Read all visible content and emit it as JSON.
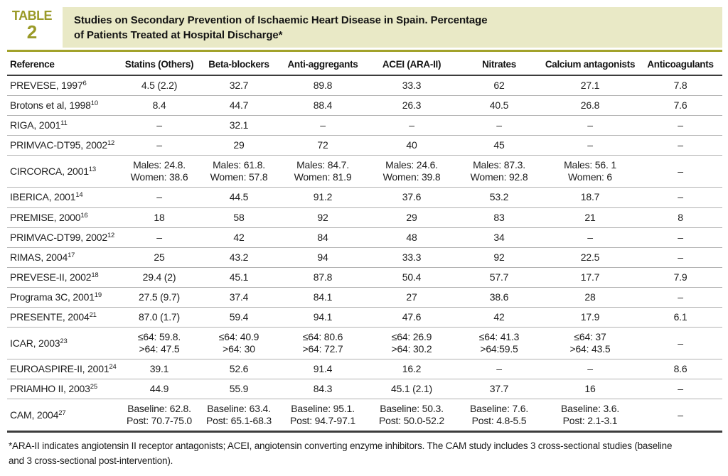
{
  "header": {
    "label_word": "TABLE",
    "label_number": "2",
    "title": "Studies on Secondary Prevention of Ischaemic Heart Disease in Spain. Percentage\nof Patients Treated at Hospital Discharge*"
  },
  "colors": {
    "accent_olive": "#9a9a28",
    "banner_background": "#e9e9c6",
    "rule_olive": "#a2a22a",
    "row_divider_gray": "#b2b2b2",
    "heavy_border_dark": "#3c3c3c"
  },
  "table": {
    "columns": [
      "Reference",
      "Statins (Others)",
      "Beta-blockers",
      "Anti-aggregants",
      "ACEI (ARA-II)",
      "Nitrates",
      "Calcium antagonists",
      "Anticoagulants"
    ],
    "rows": [
      {
        "ref": "PREVESE, 1997",
        "sup": "6",
        "cells": [
          "4.5 (2.2)",
          "32.7",
          "89.8",
          "33.3",
          "62",
          "27.1",
          "7.8"
        ]
      },
      {
        "ref": "Brotons et al, 1998",
        "sup": "10",
        "cells": [
          "8.4",
          "44.7",
          "88.4",
          "26.3",
          "40.5",
          "26.8",
          "7.6"
        ]
      },
      {
        "ref": "RIGA, 2001",
        "sup": "11",
        "cells": [
          "–",
          "32.1",
          "–",
          "–",
          "–",
          "–",
          "–"
        ]
      },
      {
        "ref": "PRIMVAC-DT95, 2002",
        "sup": "12",
        "cells": [
          "–",
          "29",
          "72",
          "40",
          "45",
          "–",
          "–"
        ]
      },
      {
        "ref": "CIRCORCA, 2001",
        "sup": "13",
        "cells": [
          "Males: 24.8.\nWomen: 38.6",
          "Males: 61.8.\nWomen: 57.8",
          "Males: 84.7.\nWomen: 81.9",
          "Males: 24.6.\nWomen: 39.8",
          "Males: 87.3.\nWomen: 92.8",
          "Males: 56. 1\nWomen: 6",
          "–"
        ]
      },
      {
        "ref": "IBERICA, 2001",
        "sup": "14",
        "cells": [
          "–",
          "44.5",
          "91.2",
          "37.6",
          "53.2",
          "18.7",
          "–"
        ]
      },
      {
        "ref": "PREMISE, 2000",
        "sup": "16",
        "cells": [
          "18",
          "58",
          "92",
          "29",
          "83",
          "21",
          "8"
        ]
      },
      {
        "ref": "PRIMVAC-DT99, 2002",
        "sup": "12",
        "cells": [
          "–",
          "42",
          "84",
          "48",
          "34",
          "–",
          "–"
        ]
      },
      {
        "ref": "RIMAS, 2004",
        "sup": "17",
        "cells": [
          "25",
          "43.2",
          "94",
          "33.3",
          "92",
          "22.5",
          "–"
        ]
      },
      {
        "ref": "PREVESE-II, 2002",
        "sup": "18",
        "cells": [
          "29.4 (2)",
          "45.1",
          "87.8",
          "50.4",
          "57.7",
          "17.7",
          "7.9"
        ]
      },
      {
        "ref": "Programa 3C, 2001",
        "sup": "19",
        "cells": [
          "27.5 (9.7)",
          "37.4",
          "84.1",
          "27",
          "38.6",
          "28",
          "–"
        ]
      },
      {
        "ref": "PRESENTE, 2004",
        "sup": "21",
        "cells": [
          "87.0 (1.7)",
          "59.4",
          "94.1",
          "47.6",
          "42",
          "17.9",
          "6.1"
        ]
      },
      {
        "ref": "ICAR, 2003",
        "sup": "23",
        "cells": [
          "≤64: 59.8.\n>64: 47.5",
          "≤64: 40.9\n>64: 30",
          "≤64: 80.6\n>64: 72.7",
          "≤64: 26.9\n>64: 30.2",
          "≤64: 41.3\n>64:59.5",
          "≤64: 37\n>64: 43.5",
          "–"
        ]
      },
      {
        "ref": "EUROASPIRE-II, 2001",
        "sup": "24",
        "cells": [
          "39.1",
          "52.6",
          "91.4",
          "16.2",
          "–",
          "–",
          "8.6"
        ]
      },
      {
        "ref": "PRIAMHO II, 2003",
        "sup": "25",
        "cells": [
          "44.9",
          "55.9",
          "84.3",
          "45.1 (2.1)",
          "37.7",
          "16",
          "–"
        ]
      },
      {
        "ref": "CAM, 2004",
        "sup": "27",
        "cells": [
          "Baseline: 62.8.\nPost: 70.7-75.0",
          "Baseline: 63.4.\nPost: 65.1-68.3",
          "Baseline: 95.1.\nPost: 94.7-97.1",
          "Baseline: 50.3.\nPost: 50.0-52.2",
          "Baseline: 7.6.\nPost: 4.8-5.5",
          "Baseline: 3.6.\nPost: 2.1-3.1",
          "–"
        ]
      }
    ]
  },
  "footnote": "*ARA-II indicates angiotensin II receptor antagonists; ACEI, angiotensin converting enzyme inhibitors. The CAM study includes 3 cross-sectional studies (baseline\nand 3 cross-sectional post-intervention)."
}
